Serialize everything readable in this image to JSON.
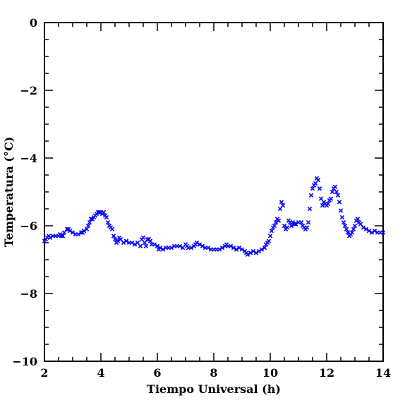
{
  "chart_data": {
    "type": "scatter",
    "xlabel": "Tiempo Universal (h)",
    "ylabel": "Temperatura (°C)",
    "xlim": [
      2,
      14
    ],
    "ylim": [
      -10,
      0
    ],
    "x_ticks": [
      2,
      4,
      6,
      8,
      10,
      12,
      14
    ],
    "x_tick_labels": [
      "2",
      "4",
      "6",
      "8",
      "10",
      "12",
      "14"
    ],
    "y_ticks": [
      0,
      -2,
      -4,
      -6,
      -8,
      -10
    ],
    "y_tick_labels": [
      "0",
      "−2",
      "−4",
      "−6",
      "−8",
      "−10"
    ],
    "marker": "x",
    "series": [
      {
        "color": "#0000ff",
        "points": [
          [
            2.0,
            -6.45
          ],
          [
            2.05,
            -6.4
          ],
          [
            2.1,
            -6.35
          ],
          [
            2.15,
            -6.3
          ],
          [
            2.2,
            -6.35
          ],
          [
            2.3,
            -6.3
          ],
          [
            2.4,
            -6.3
          ],
          [
            2.5,
            -6.3
          ],
          [
            2.55,
            -6.25
          ],
          [
            2.6,
            -6.3
          ],
          [
            2.65,
            -6.3
          ],
          [
            2.7,
            -6.2
          ],
          [
            2.8,
            -6.1
          ],
          [
            2.85,
            -6.1
          ],
          [
            2.9,
            -6.15
          ],
          [
            3.0,
            -6.2
          ],
          [
            3.1,
            -6.25
          ],
          [
            3.2,
            -6.25
          ],
          [
            3.3,
            -6.2
          ],
          [
            3.35,
            -6.2
          ],
          [
            3.4,
            -6.15
          ],
          [
            3.5,
            -6.1
          ],
          [
            3.55,
            -6.0
          ],
          [
            3.6,
            -5.9
          ],
          [
            3.65,
            -5.8
          ],
          [
            3.7,
            -5.8
          ],
          [
            3.75,
            -5.75
          ],
          [
            3.8,
            -5.7
          ],
          [
            3.85,
            -5.65
          ],
          [
            3.9,
            -5.6
          ],
          [
            3.95,
            -5.6
          ],
          [
            4.0,
            -5.6
          ],
          [
            4.05,
            -5.65
          ],
          [
            4.1,
            -5.6
          ],
          [
            4.15,
            -5.7
          ],
          [
            4.2,
            -5.75
          ],
          [
            4.25,
            -5.9
          ],
          [
            4.3,
            -6.0
          ],
          [
            4.35,
            -6.05
          ],
          [
            4.4,
            -6.1
          ],
          [
            4.45,
            -6.3
          ],
          [
            4.5,
            -6.4
          ],
          [
            4.55,
            -6.5
          ],
          [
            4.6,
            -6.45
          ],
          [
            4.65,
            -6.35
          ],
          [
            4.7,
            -6.4
          ],
          [
            4.8,
            -6.5
          ],
          [
            4.9,
            -6.45
          ],
          [
            5.0,
            -6.5
          ],
          [
            5.1,
            -6.5
          ],
          [
            5.2,
            -6.55
          ],
          [
            5.3,
            -6.5
          ],
          [
            5.4,
            -6.6
          ],
          [
            5.45,
            -6.4
          ],
          [
            5.5,
            -6.35
          ],
          [
            5.55,
            -6.5
          ],
          [
            5.6,
            -6.6
          ],
          [
            5.65,
            -6.4
          ],
          [
            5.7,
            -6.4
          ],
          [
            5.75,
            -6.45
          ],
          [
            5.8,
            -6.55
          ],
          [
            5.9,
            -6.55
          ],
          [
            6.0,
            -6.6
          ],
          [
            6.05,
            -6.7
          ],
          [
            6.1,
            -6.65
          ],
          [
            6.2,
            -6.7
          ],
          [
            6.3,
            -6.65
          ],
          [
            6.4,
            -6.65
          ],
          [
            6.5,
            -6.65
          ],
          [
            6.6,
            -6.6
          ],
          [
            6.7,
            -6.6
          ],
          [
            6.8,
            -6.6
          ],
          [
            6.9,
            -6.65
          ],
          [
            7.0,
            -6.55
          ],
          [
            7.05,
            -6.6
          ],
          [
            7.1,
            -6.65
          ],
          [
            7.2,
            -6.65
          ],
          [
            7.3,
            -6.6
          ],
          [
            7.35,
            -6.55
          ],
          [
            7.4,
            -6.5
          ],
          [
            7.5,
            -6.55
          ],
          [
            7.6,
            -6.6
          ],
          [
            7.7,
            -6.65
          ],
          [
            7.8,
            -6.65
          ],
          [
            7.9,
            -6.7
          ],
          [
            8.0,
            -6.7
          ],
          [
            8.1,
            -6.7
          ],
          [
            8.2,
            -6.7
          ],
          [
            8.3,
            -6.65
          ],
          [
            8.4,
            -6.6
          ],
          [
            8.45,
            -6.55
          ],
          [
            8.5,
            -6.6
          ],
          [
            8.6,
            -6.6
          ],
          [
            8.7,
            -6.65
          ],
          [
            8.8,
            -6.7
          ],
          [
            8.9,
            -6.65
          ],
          [
            9.0,
            -6.7
          ],
          [
            9.1,
            -6.75
          ],
          [
            9.15,
            -6.8
          ],
          [
            9.2,
            -6.85
          ],
          [
            9.3,
            -6.8
          ],
          [
            9.4,
            -6.75
          ],
          [
            9.5,
            -6.8
          ],
          [
            9.6,
            -6.75
          ],
          [
            9.7,
            -6.7
          ],
          [
            9.8,
            -6.65
          ],
          [
            9.85,
            -6.55
          ],
          [
            9.9,
            -6.5
          ],
          [
            9.95,
            -6.45
          ],
          [
            10.0,
            -6.3
          ],
          [
            10.05,
            -6.15
          ],
          [
            10.1,
            -6.05
          ],
          [
            10.15,
            -6.0
          ],
          [
            10.2,
            -5.9
          ],
          [
            10.25,
            -5.8
          ],
          [
            10.3,
            -5.85
          ],
          [
            10.35,
            -5.5
          ],
          [
            10.4,
            -5.3
          ],
          [
            10.45,
            -5.4
          ],
          [
            10.5,
            -6.0
          ],
          [
            10.55,
            -6.1
          ],
          [
            10.6,
            -6.05
          ],
          [
            10.65,
            -5.85
          ],
          [
            10.7,
            -5.9
          ],
          [
            10.75,
            -6.0
          ],
          [
            10.8,
            -5.9
          ],
          [
            10.85,
            -5.95
          ],
          [
            10.9,
            -5.95
          ],
          [
            11.0,
            -5.9
          ],
          [
            11.1,
            -5.9
          ],
          [
            11.15,
            -6.0
          ],
          [
            11.2,
            -6.05
          ],
          [
            11.25,
            -6.1
          ],
          [
            11.3,
            -6.05
          ],
          [
            11.35,
            -5.9
          ],
          [
            11.4,
            -5.5
          ],
          [
            11.45,
            -5.1
          ],
          [
            11.5,
            -4.9
          ],
          [
            11.55,
            -4.8
          ],
          [
            11.6,
            -4.75
          ],
          [
            11.65,
            -4.6
          ],
          [
            11.7,
            -4.65
          ],
          [
            11.75,
            -4.9
          ],
          [
            11.8,
            -5.2
          ],
          [
            11.85,
            -5.4
          ],
          [
            11.9,
            -5.3
          ],
          [
            11.95,
            -5.35
          ],
          [
            12.0,
            -5.4
          ],
          [
            12.05,
            -5.35
          ],
          [
            12.1,
            -5.25
          ],
          [
            12.15,
            -5.2
          ],
          [
            12.2,
            -5.0
          ],
          [
            12.25,
            -4.9
          ],
          [
            12.3,
            -4.85
          ],
          [
            12.35,
            -5.0
          ],
          [
            12.4,
            -5.1
          ],
          [
            12.45,
            -5.3
          ],
          [
            12.5,
            -5.55
          ],
          [
            12.55,
            -5.75
          ],
          [
            12.6,
            -5.9
          ],
          [
            12.65,
            -6.0
          ],
          [
            12.7,
            -6.1
          ],
          [
            12.75,
            -6.2
          ],
          [
            12.8,
            -6.3
          ],
          [
            12.85,
            -6.25
          ],
          [
            12.9,
            -6.2
          ],
          [
            12.95,
            -6.1
          ],
          [
            13.0,
            -6.0
          ],
          [
            13.05,
            -5.85
          ],
          [
            13.1,
            -5.8
          ],
          [
            13.15,
            -5.9
          ],
          [
            13.2,
            -5.95
          ],
          [
            13.3,
            -6.05
          ],
          [
            13.4,
            -6.1
          ],
          [
            13.5,
            -6.15
          ],
          [
            13.6,
            -6.2
          ],
          [
            13.7,
            -6.15
          ],
          [
            13.8,
            -6.2
          ],
          [
            13.9,
            -6.2
          ],
          [
            14.0,
            -6.2
          ]
        ]
      }
    ]
  }
}
